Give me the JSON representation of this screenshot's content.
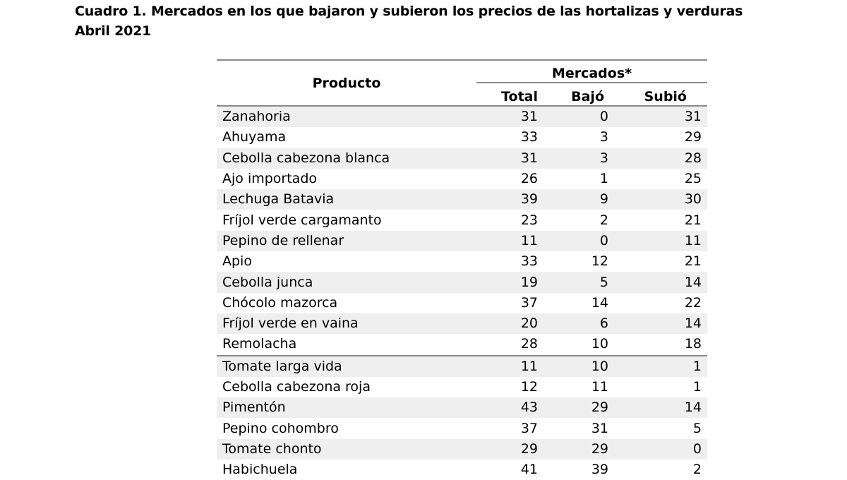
{
  "title": {
    "line1": "Cuadro 1. Mercados en los que bajaron y subieron los precios de las hortalizas y verduras",
    "line2": "Abril 2021"
  },
  "table": {
    "header_producto": "Producto",
    "header_mercados": "Mercados*",
    "columns": [
      "Total",
      "Bajó",
      "Subió"
    ],
    "rows": [
      {
        "producto": "Zanahoria",
        "total": "31",
        "bajo": "0",
        "subio": "31"
      },
      {
        "producto": "Ahuyama",
        "total": "33",
        "bajo": "3",
        "subio": "29"
      },
      {
        "producto": "Cebolla cabezona blanca",
        "total": "31",
        "bajo": "3",
        "subio": "28"
      },
      {
        "producto": "Ajo importado",
        "total": "26",
        "bajo": "1",
        "subio": "25"
      },
      {
        "producto": "Lechuga Batavia",
        "total": "39",
        "bajo": "9",
        "subio": "30"
      },
      {
        "producto": "Fríjol verde cargamanto",
        "total": "23",
        "bajo": "2",
        "subio": "21"
      },
      {
        "producto": "Pepino de rellenar",
        "total": "11",
        "bajo": "0",
        "subio": "11"
      },
      {
        "producto": "Apio",
        "total": "33",
        "bajo": "12",
        "subio": "21"
      },
      {
        "producto": "Cebolla junca",
        "total": "19",
        "bajo": "5",
        "subio": "14"
      },
      {
        "producto": "Chócolo mazorca",
        "total": "37",
        "bajo": "14",
        "subio": "22"
      },
      {
        "producto": "Fríjol verde en vaina",
        "total": "20",
        "bajo": "6",
        "subio": "14"
      },
      {
        "producto": "Remolacha",
        "total": "28",
        "bajo": "10",
        "subio": "18"
      },
      {
        "producto": "Tomate larga vida",
        "total": "11",
        "bajo": "10",
        "subio": "1"
      },
      {
        "producto": "Cebolla cabezona roja",
        "total": "12",
        "bajo": "11",
        "subio": "1"
      },
      {
        "producto": "Pimentón",
        "total": "43",
        "bajo": "29",
        "subio": "14"
      },
      {
        "producto": "Pepino cohombro",
        "total": "37",
        "bajo": "31",
        "subio": "5"
      },
      {
        "producto": "Tomate chonto",
        "total": "29",
        "bajo": "29",
        "subio": "0"
      },
      {
        "producto": "Habichuela",
        "total": "41",
        "bajo": "39",
        "subio": "2"
      }
    ]
  }
}
